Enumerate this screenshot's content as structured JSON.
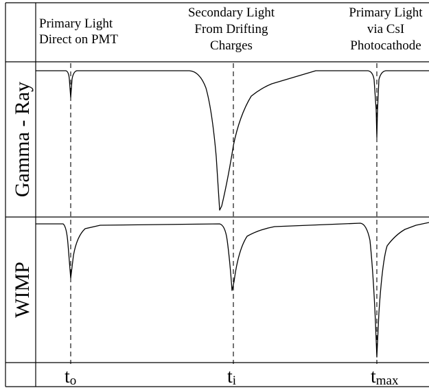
{
  "header": {
    "col1": [
      "Primary Light",
      "Direct on PMT"
    ],
    "col2": [
      "Secondary Light",
      "From Drifting",
      "Charges"
    ],
    "col3": [
      "Primary Light",
      "via CsI",
      "Photocathode"
    ]
  },
  "rows": {
    "top_label": "Gamma - Ray",
    "bottom_label": "WIMP"
  },
  "time_labels": {
    "t0": {
      "main": "t",
      "sub": "o"
    },
    "t1": {
      "main": "t",
      "sub": "i"
    },
    "t2": {
      "main": "t",
      "sub": "max"
    }
  }
}
